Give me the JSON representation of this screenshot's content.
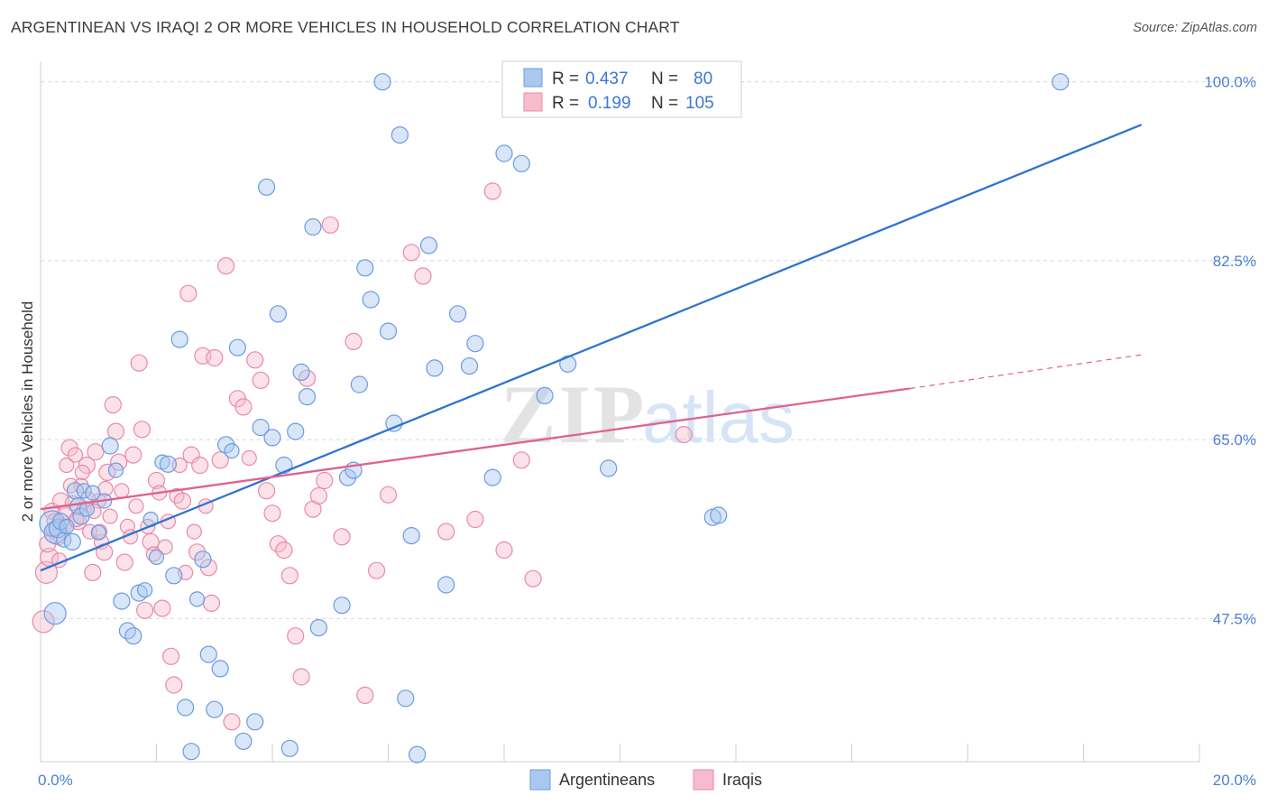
{
  "title": "ARGENTINEAN VS IRAQI 2 OR MORE VEHICLES IN HOUSEHOLD CORRELATION CHART",
  "source": "Source: ZipAtlas.com",
  "colors": {
    "blue_fill": "#a9c8f0",
    "blue_stroke": "#6b9be0",
    "blue_line": "#2f74d0",
    "pink_fill": "#f6bccd",
    "pink_stroke": "#e98aa8",
    "pink_line": "#e0628c",
    "tick_text": "#4a7fd6",
    "grid": "#d8d8d8"
  },
  "legend": {
    "rows": [
      {
        "r_label": "R =",
        "r_value": "0.437",
        "n_label": "N =",
        "n_value": "80",
        "series": "blue"
      },
      {
        "r_label": "R =",
        "r_value": "0.199",
        "n_label": "N =",
        "n_value": "105",
        "series": "pink"
      }
    ]
  },
  "chart_data": {
    "type": "scatter",
    "title": "ARGENTINEAN VS IRAQI 2 OR MORE VEHICLES IN HOUSEHOLD CORRELATION CHART",
    "xlabel": "",
    "ylabel": "2 or more Vehicles in Household",
    "xlim": [
      0,
      20
    ],
    "ylim": [
      33.5,
      102
    ],
    "x_tick_labels": [
      {
        "value": 0,
        "label": "0.0%"
      },
      {
        "value": 20,
        "label": "20.0%"
      }
    ],
    "y_tick_labels": [
      {
        "value": 100,
        "label": "100.0%"
      },
      {
        "value": 82.5,
        "label": "82.5%"
      },
      {
        "value": 65,
        "label": "65.0%"
      },
      {
        "value": 47.5,
        "label": "47.5%"
      }
    ],
    "grid": true,
    "legend_position": "top-center",
    "bottom_legend": [
      "Argentineans",
      "Iraqis"
    ],
    "series": [
      {
        "name": "Argentineans",
        "color": "blue",
        "trend": {
          "x": [
            0,
            19.0
          ],
          "y": [
            52.2,
            95.8
          ],
          "dashed_until": null
        },
        "points": [
          [
            0.2,
            56.8,
            14
          ],
          [
            0.25,
            55.9,
            12
          ],
          [
            0.3,
            56.3,
            10
          ],
          [
            0.35,
            57.0,
            9
          ],
          [
            0.4,
            55.2,
            8
          ],
          [
            0.45,
            56.5,
            8
          ],
          [
            0.25,
            48.0,
            12
          ],
          [
            0.6,
            60.0,
            9
          ],
          [
            0.65,
            58.5,
            9
          ],
          [
            0.7,
            57.5,
            9
          ],
          [
            0.75,
            60.0,
            8
          ],
          [
            1.0,
            55.9,
            8
          ],
          [
            1.1,
            59.0,
            8
          ],
          [
            1.2,
            64.4,
            9
          ],
          [
            1.4,
            49.2,
            9
          ],
          [
            1.5,
            46.3,
            9
          ],
          [
            1.6,
            45.8,
            9
          ],
          [
            1.7,
            50.0,
            9
          ],
          [
            1.8,
            50.3,
            8
          ],
          [
            1.9,
            57.2,
            8
          ],
          [
            2.0,
            53.5,
            8
          ],
          [
            2.1,
            62.8,
            8
          ],
          [
            2.2,
            62.6,
            9
          ],
          [
            2.3,
            51.7,
            9
          ],
          [
            2.4,
            74.8,
            9
          ],
          [
            2.5,
            38.8,
            9
          ],
          [
            2.6,
            34.5,
            9
          ],
          [
            2.7,
            49.4,
            8
          ],
          [
            2.8,
            53.3,
            9
          ],
          [
            2.9,
            44.0,
            9
          ],
          [
            3.0,
            38.6,
            9
          ],
          [
            3.1,
            42.6,
            9
          ],
          [
            3.2,
            64.5,
            9
          ],
          [
            3.3,
            63.9,
            8
          ],
          [
            3.4,
            74.0,
            9
          ],
          [
            3.5,
            35.5,
            9
          ],
          [
            3.7,
            37.4,
            9
          ],
          [
            3.8,
            66.2,
            9
          ],
          [
            3.9,
            89.7,
            9
          ],
          [
            4.0,
            65.2,
            9
          ],
          [
            4.1,
            77.3,
            9
          ],
          [
            4.2,
            62.5,
            9
          ],
          [
            4.3,
            34.8,
            9
          ],
          [
            4.4,
            65.8,
            9
          ],
          [
            4.5,
            71.6,
            9
          ],
          [
            4.6,
            69.2,
            9
          ],
          [
            4.7,
            85.8,
            9
          ],
          [
            4.8,
            46.6,
            9
          ],
          [
            5.2,
            48.8,
            9
          ],
          [
            5.3,
            61.3,
            9
          ],
          [
            5.4,
            62.0,
            9
          ],
          [
            5.5,
            70.4,
            9
          ],
          [
            5.6,
            81.8,
            9
          ],
          [
            5.7,
            78.7,
            9
          ],
          [
            5.9,
            100.0,
            9
          ],
          [
            6.0,
            75.6,
            9
          ],
          [
            6.1,
            66.6,
            9
          ],
          [
            6.2,
            94.8,
            9
          ],
          [
            6.3,
            39.7,
            9
          ],
          [
            6.4,
            55.6,
            9
          ],
          [
            6.5,
            34.2,
            9
          ],
          [
            6.7,
            84.0,
            9
          ],
          [
            6.8,
            72.0,
            9
          ],
          [
            7.0,
            50.8,
            9
          ],
          [
            7.2,
            77.3,
            9
          ],
          [
            7.4,
            72.2,
            9
          ],
          [
            7.5,
            74.4,
            9
          ],
          [
            7.8,
            61.3,
            9
          ],
          [
            8.0,
            93.0,
            9
          ],
          [
            8.3,
            92.0,
            9
          ],
          [
            8.7,
            69.3,
            9
          ],
          [
            9.1,
            72.4,
            9
          ],
          [
            9.8,
            62.2,
            9
          ],
          [
            11.6,
            57.4,
            9
          ],
          [
            11.7,
            57.6,
            9
          ],
          [
            17.6,
            100.0,
            9
          ],
          [
            1.3,
            62.0,
            8
          ],
          [
            0.9,
            59.8,
            8
          ],
          [
            0.55,
            55.0,
            9
          ],
          [
            0.8,
            58.2,
            8
          ]
        ]
      },
      {
        "name": "Iraqis",
        "color": "pink",
        "trend": {
          "x": [
            0,
            15.0
          ],
          "y": [
            58.2,
            70.0
          ],
          "dashed_until": 19.0,
          "dashed_y_end": 73.3
        },
        "points": [
          [
            0.05,
            47.2,
            12
          ],
          [
            0.1,
            52.0,
            12
          ],
          [
            0.15,
            53.5,
            10
          ],
          [
            0.2,
            58.0,
            9
          ],
          [
            0.25,
            57.0,
            9
          ],
          [
            0.3,
            55.5,
            9
          ],
          [
            0.35,
            59.0,
            9
          ],
          [
            0.4,
            56.5,
            8
          ],
          [
            0.45,
            62.5,
            8
          ],
          [
            0.5,
            64.2,
            9
          ],
          [
            0.55,
            58.8,
            8
          ],
          [
            0.6,
            63.5,
            8
          ],
          [
            0.65,
            57.0,
            9
          ],
          [
            0.7,
            60.5,
            8
          ],
          [
            0.75,
            58.2,
            8
          ],
          [
            0.8,
            62.5,
            9
          ],
          [
            0.85,
            56.0,
            8
          ],
          [
            0.9,
            52.0,
            9
          ],
          [
            0.95,
            63.8,
            9
          ],
          [
            1.0,
            59.0,
            8
          ],
          [
            1.05,
            55.0,
            8
          ],
          [
            1.1,
            54.0,
            9
          ],
          [
            1.15,
            61.8,
            9
          ],
          [
            1.2,
            57.5,
            8
          ],
          [
            1.25,
            68.4,
            9
          ],
          [
            1.3,
            65.8,
            9
          ],
          [
            1.35,
            62.8,
            9
          ],
          [
            1.4,
            60.0,
            8
          ],
          [
            1.45,
            53.0,
            9
          ],
          [
            1.5,
            56.5,
            8
          ],
          [
            1.55,
            55.5,
            8
          ],
          [
            1.6,
            63.5,
            9
          ],
          [
            1.65,
            58.5,
            8
          ],
          [
            1.7,
            72.5,
            9
          ],
          [
            1.75,
            66.0,
            9
          ],
          [
            1.8,
            48.3,
            9
          ],
          [
            1.85,
            56.5,
            8
          ],
          [
            1.9,
            55.0,
            9
          ],
          [
            1.95,
            53.8,
            8
          ],
          [
            2.0,
            61.0,
            9
          ],
          [
            2.05,
            59.8,
            8
          ],
          [
            2.1,
            48.5,
            9
          ],
          [
            2.15,
            54.5,
            8
          ],
          [
            2.2,
            57.0,
            8
          ],
          [
            2.25,
            43.8,
            9
          ],
          [
            2.3,
            41.0,
            9
          ],
          [
            2.35,
            59.5,
            8
          ],
          [
            2.4,
            62.5,
            8
          ],
          [
            2.45,
            59.0,
            9
          ],
          [
            2.5,
            52.0,
            8
          ],
          [
            2.55,
            79.3,
            9
          ],
          [
            2.6,
            63.5,
            9
          ],
          [
            2.65,
            56.0,
            8
          ],
          [
            2.7,
            54.0,
            9
          ],
          [
            2.75,
            62.5,
            9
          ],
          [
            2.8,
            73.2,
            9
          ],
          [
            2.85,
            58.5,
            8
          ],
          [
            2.9,
            52.5,
            9
          ],
          [
            2.95,
            49.0,
            9
          ],
          [
            3.0,
            73.0,
            9
          ],
          [
            3.1,
            63.0,
            9
          ],
          [
            3.2,
            82.0,
            9
          ],
          [
            3.3,
            37.4,
            9
          ],
          [
            3.4,
            69.0,
            9
          ],
          [
            3.5,
            68.2,
            9
          ],
          [
            3.6,
            63.2,
            8
          ],
          [
            3.7,
            72.8,
            9
          ],
          [
            3.8,
            70.8,
            9
          ],
          [
            3.9,
            60.0,
            9
          ],
          [
            4.0,
            57.8,
            9
          ],
          [
            4.1,
            54.8,
            9
          ],
          [
            4.2,
            54.2,
            9
          ],
          [
            4.3,
            51.7,
            9
          ],
          [
            4.4,
            45.8,
            9
          ],
          [
            4.5,
            41.8,
            9
          ],
          [
            4.6,
            71.0,
            9
          ],
          [
            4.7,
            58.2,
            9
          ],
          [
            4.8,
            59.5,
            9
          ],
          [
            4.9,
            61.0,
            9
          ],
          [
            5.0,
            86.0,
            9
          ],
          [
            5.2,
            55.5,
            9
          ],
          [
            5.4,
            74.6,
            9
          ],
          [
            5.6,
            40.0,
            9
          ],
          [
            5.8,
            52.2,
            9
          ],
          [
            6.0,
            59.6,
            9
          ],
          [
            6.4,
            83.3,
            9
          ],
          [
            6.6,
            81.0,
            9
          ],
          [
            7.0,
            56.0,
            9
          ],
          [
            7.5,
            57.2,
            9
          ],
          [
            7.8,
            89.3,
            9
          ],
          [
            8.0,
            54.2,
            9
          ],
          [
            8.3,
            63.0,
            9
          ],
          [
            8.5,
            51.4,
            9
          ],
          [
            11.1,
            65.5,
            9
          ],
          [
            0.12,
            54.8,
            9
          ],
          [
            0.22,
            56.2,
            8
          ],
          [
            0.32,
            53.2,
            8
          ],
          [
            0.42,
            57.8,
            8
          ],
          [
            0.52,
            60.5,
            8
          ],
          [
            0.62,
            57.2,
            8
          ],
          [
            0.72,
            61.8,
            8
          ],
          [
            0.82,
            59.2,
            8
          ],
          [
            0.92,
            58.0,
            8
          ],
          [
            1.02,
            56.0,
            8
          ],
          [
            1.12,
            60.2,
            8
          ]
        ]
      }
    ]
  }
}
